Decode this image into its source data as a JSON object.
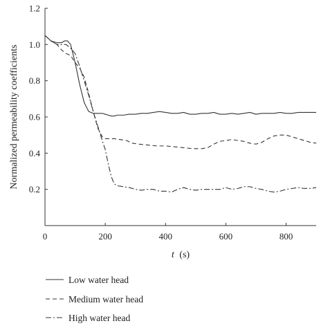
{
  "chart_data": {
    "type": "line",
    "xlabel": "t (s)",
    "xlabel_main": "t",
    "xlabel_unit": "(s)",
    "ylabel": "Normalized permeability coefficients",
    "xlim": [
      0,
      900
    ],
    "ylim": [
      0,
      1.2
    ],
    "xticks": [
      0,
      200,
      400,
      600,
      800
    ],
    "yticks": [
      0.2,
      0.4,
      0.6,
      0.8,
      1.0,
      1.2
    ],
    "xtick_labels": [
      "0",
      "200",
      "400",
      "600",
      "800"
    ],
    "ytick_labels": [
      "0.2",
      "0.4",
      "0.6",
      "0.8",
      "1.0",
      "1.2"
    ],
    "grid": false,
    "legend_position": "bottom",
    "series": [
      {
        "name": "Low water head",
        "line_style": "solid",
        "x": [
          0,
          20,
          40,
          55,
          65,
          75,
          85,
          100,
          115,
          130,
          145,
          160,
          175,
          190,
          200,
          210,
          220,
          230,
          240,
          260,
          280,
          300,
          320,
          340,
          360,
          380,
          400,
          420,
          440,
          460,
          480,
          500,
          520,
          540,
          560,
          580,
          600,
          620,
          640,
          660,
          680,
          700,
          720,
          740,
          760,
          780,
          800,
          820,
          840,
          860,
          880,
          900
        ],
        "y": [
          1.05,
          1.02,
          1.01,
          1.01,
          1.02,
          1.02,
          1.0,
          0.9,
          0.78,
          0.68,
          0.63,
          0.62,
          0.62,
          0.62,
          0.615,
          0.61,
          0.605,
          0.605,
          0.61,
          0.61,
          0.615,
          0.615,
          0.62,
          0.62,
          0.625,
          0.63,
          0.625,
          0.62,
          0.62,
          0.625,
          0.615,
          0.615,
          0.62,
          0.62,
          0.625,
          0.615,
          0.615,
          0.62,
          0.615,
          0.62,
          0.625,
          0.615,
          0.62,
          0.62,
          0.62,
          0.625,
          0.62,
          0.62,
          0.625,
          0.625,
          0.625,
          0.625
        ]
      },
      {
        "name": "Medium water head",
        "line_style": "dashed",
        "x": [
          0,
          20,
          40,
          55,
          70,
          85,
          100,
          115,
          130,
          145,
          160,
          175,
          190,
          200,
          210,
          230,
          250,
          270,
          290,
          310,
          340,
          370,
          400,
          430,
          460,
          490,
          520,
          540,
          560,
          580,
          600,
          620,
          640,
          660,
          680,
          700,
          720,
          740,
          760,
          780,
          800,
          820,
          840,
          860,
          880,
          900
        ],
        "y": [
          1.05,
          1.02,
          1.0,
          0.97,
          0.95,
          0.94,
          0.9,
          0.87,
          0.82,
          0.73,
          0.63,
          0.54,
          0.49,
          0.48,
          0.48,
          0.48,
          0.475,
          0.47,
          0.455,
          0.45,
          0.445,
          0.44,
          0.44,
          0.435,
          0.43,
          0.425,
          0.425,
          0.43,
          0.45,
          0.465,
          0.47,
          0.475,
          0.47,
          0.465,
          0.455,
          0.45,
          0.46,
          0.48,
          0.495,
          0.5,
          0.5,
          0.49,
          0.48,
          0.47,
          0.46,
          0.455
        ]
      },
      {
        "name": "High water head",
        "line_style": "dash-dot",
        "x": [
          0,
          20,
          40,
          55,
          70,
          85,
          100,
          115,
          130,
          145,
          160,
          175,
          190,
          200,
          210,
          220,
          230,
          240,
          260,
          280,
          300,
          320,
          340,
          360,
          380,
          400,
          420,
          440,
          460,
          480,
          500,
          520,
          540,
          560,
          580,
          600,
          620,
          640,
          660,
          680,
          700,
          720,
          740,
          760,
          780,
          800,
          820,
          840,
          860,
          880,
          900
        ],
        "y": [
          1.05,
          1.02,
          1.0,
          1.0,
          1.0,
          0.98,
          0.95,
          0.88,
          0.8,
          0.72,
          0.63,
          0.55,
          0.47,
          0.42,
          0.34,
          0.27,
          0.23,
          0.22,
          0.215,
          0.21,
          0.2,
          0.195,
          0.2,
          0.2,
          0.19,
          0.19,
          0.185,
          0.2,
          0.21,
          0.2,
          0.195,
          0.2,
          0.2,
          0.2,
          0.2,
          0.21,
          0.2,
          0.205,
          0.215,
          0.215,
          0.205,
          0.2,
          0.19,
          0.185,
          0.19,
          0.2,
          0.205,
          0.21,
          0.205,
          0.205,
          0.21
        ]
      }
    ]
  }
}
